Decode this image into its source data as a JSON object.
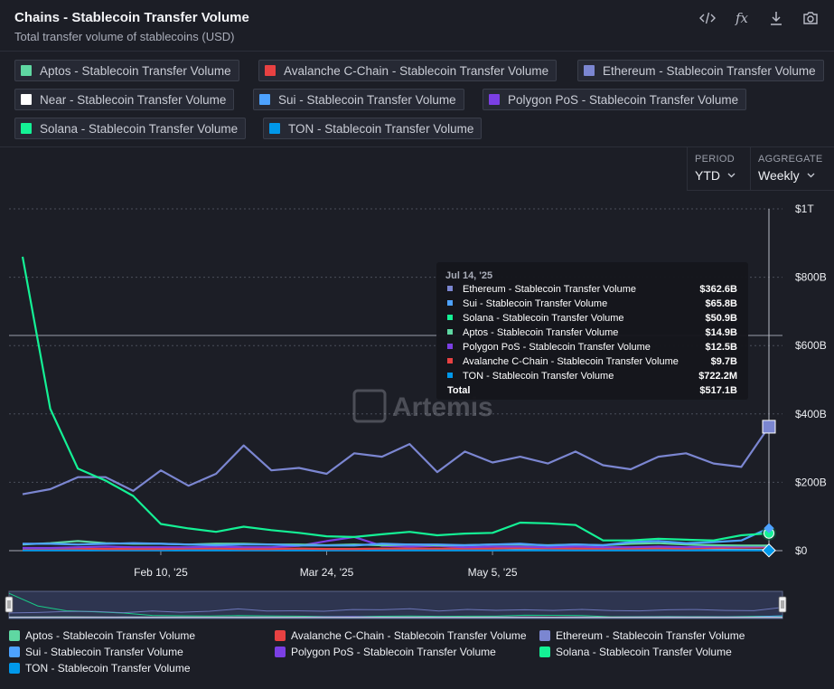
{
  "header": {
    "title": "Chains - Stablecoin Transfer Volume",
    "subtitle": "Total transfer volume of stablecoins (USD)"
  },
  "toolbar": {
    "icons": [
      "code-icon",
      "formula-icon",
      "download-icon",
      "camera-icon"
    ],
    "formula_label": "fx"
  },
  "chips": [
    {
      "label": "Aptos - Stablecoin Transfer Volume",
      "color": "#5fd7a2"
    },
    {
      "label": "Avalanche C-Chain - Stablecoin Transfer Volume",
      "color": "#e84142"
    },
    {
      "label": "Ethereum - Stablecoin Transfer Volume",
      "color": "#7b86d1"
    },
    {
      "label": "Near - Stablecoin Transfer Volume",
      "color": "#ffffff"
    },
    {
      "label": "Sui - Stablecoin Transfer Volume",
      "color": "#4da2ff"
    },
    {
      "label": "Polygon PoS - Stablecoin Transfer Volume",
      "color": "#7b3fe4"
    },
    {
      "label": "Solana - Stablecoin Transfer Volume",
      "color": "#14f195"
    },
    {
      "label": "TON - Stablecoin Transfer Volume",
      "color": "#0098ea"
    }
  ],
  "controls": {
    "period_label": "PERIOD",
    "period_value": "YTD",
    "aggregate_label": "AGGREGATE",
    "aggregate_value": "Weekly"
  },
  "watermark": "Artemis",
  "tooltip": {
    "date": "Jul 14, '25",
    "rows": [
      {
        "name": "Ethereum - Stablecoin Transfer Volume",
        "value": "$362.6B",
        "color": "#7b86d1"
      },
      {
        "name": "Sui - Stablecoin Transfer Volume",
        "value": "$65.8B",
        "color": "#4da2ff"
      },
      {
        "name": "Solana - Stablecoin Transfer Volume",
        "value": "$50.9B",
        "color": "#14f195"
      },
      {
        "name": "Aptos - Stablecoin Transfer Volume",
        "value": "$14.9B",
        "color": "#5fd7a2"
      },
      {
        "name": "Polygon PoS - Stablecoin Transfer Volume",
        "value": "$12.5B",
        "color": "#7b3fe4"
      },
      {
        "name": "Avalanche C-Chain - Stablecoin Transfer Volume",
        "value": "$9.7B",
        "color": "#e84142"
      },
      {
        "name": "TON - Stablecoin Transfer Volume",
        "value": "$722.2M",
        "color": "#0098ea"
      }
    ],
    "total_label": "Total",
    "total_value": "$517.1B"
  },
  "legend": [
    {
      "label": "Aptos - Stablecoin Transfer Volume",
      "color": "#5fd7a2"
    },
    {
      "label": "Avalanche C-Chain - Stablecoin Transfer Volume",
      "color": "#e84142"
    },
    {
      "label": "Ethereum - Stablecoin Transfer Volume",
      "color": "#7b86d1"
    },
    {
      "label": "Sui - Stablecoin Transfer Volume",
      "color": "#4da2ff"
    },
    {
      "label": "Polygon PoS - Stablecoin Transfer Volume",
      "color": "#7b3fe4"
    },
    {
      "label": "Solana - Stablecoin Transfer Volume",
      "color": "#14f195"
    },
    {
      "label": "TON - Stablecoin Transfer Volume",
      "color": "#0098ea"
    }
  ],
  "chart_data": {
    "type": "line",
    "x": [
      "Jan 6, '25",
      "Jan 13, '25",
      "Jan 20, '25",
      "Jan 27, '25",
      "Feb 3, '25",
      "Feb 10, '25",
      "Feb 17, '25",
      "Feb 24, '25",
      "Mar 3, '25",
      "Mar 10, '25",
      "Mar 17, '25",
      "Mar 24, '25",
      "Mar 31, '25",
      "Apr 7, '25",
      "Apr 14, '25",
      "Apr 21, '25",
      "Apr 28, '25",
      "May 5, '25",
      "May 12, '25",
      "May 19, '25",
      "May 26, '25",
      "Jun 2, '25",
      "Jun 9, '25",
      "Jun 16, '25",
      "Jun 23, '25",
      "Jun 30, '25",
      "Jul 7, '25",
      "Jul 14, '25"
    ],
    "xticks": [
      "Feb 10, '25",
      "Mar 24, '25",
      "May 5, '25"
    ],
    "yticks": [
      "$0",
      "$200B",
      "$400B",
      "$600B",
      "$800B",
      "$1T"
    ],
    "ylim": [
      0,
      1000
    ],
    "y_unit": "B USD",
    "series": [
      {
        "name": "Solana - Stablecoin Transfer Volume",
        "color": "#14f195",
        "values": [
          860,
          415,
          240,
          205,
          160,
          78,
          65,
          55,
          70,
          60,
          52,
          42,
          40,
          48,
          55,
          45,
          50,
          52,
          82,
          80,
          75,
          30,
          30,
          35,
          32,
          30,
          45,
          50.9
        ]
      },
      {
        "name": "Ethereum - Stablecoin Transfer Volume",
        "color": "#7b86d1",
        "values": [
          165,
          180,
          215,
          215,
          175,
          235,
          190,
          225,
          308,
          235,
          242,
          225,
          285,
          275,
          312,
          230,
          290,
          258,
          275,
          255,
          290,
          250,
          238,
          275,
          285,
          255,
          245,
          362.6
        ]
      },
      {
        "name": "Sui - Stablecoin Transfer Volume",
        "color": "#4da2ff",
        "values": [
          20,
          20,
          18,
          20,
          22,
          20,
          18,
          16,
          18,
          18,
          15,
          15,
          15,
          20,
          18,
          18,
          16,
          18,
          20,
          15,
          18,
          16,
          25,
          28,
          22,
          25,
          30,
          65.8
        ]
      },
      {
        "name": "Aptos - Stablecoin Transfer Volume",
        "color": "#5fd7a2",
        "values": [
          18,
          22,
          28,
          22,
          20,
          20,
          18,
          20,
          20,
          18,
          18,
          16,
          18,
          16,
          18,
          16,
          16,
          18,
          18,
          16,
          18,
          16,
          20,
          22,
          18,
          16,
          15,
          14.9
        ]
      },
      {
        "name": "Polygon PoS - Stablecoin Transfer Volume",
        "color": "#7b3fe4",
        "values": [
          8,
          8,
          10,
          12,
          10,
          10,
          10,
          12,
          10,
          10,
          14,
          28,
          40,
          14,
          12,
          14,
          10,
          12,
          12,
          10,
          12,
          10,
          10,
          12,
          10,
          12,
          12,
          12.5
        ]
      },
      {
        "name": "Avalanche C-Chain - Stablecoin Transfer Volume",
        "color": "#e84142",
        "values": [
          6,
          6,
          6,
          5,
          5,
          5,
          6,
          6,
          5,
          5,
          6,
          5,
          5,
          6,
          6,
          6,
          6,
          6,
          8,
          7,
          6,
          6,
          6,
          7,
          6,
          8,
          9,
          9.7
        ]
      },
      {
        "name": "TON - Stablecoin Transfer Volume",
        "color": "#0098ea",
        "values": [
          1,
          1,
          1,
          1,
          1,
          1,
          1,
          1,
          1,
          1,
          1,
          1,
          1,
          1,
          1,
          1,
          1,
          1,
          1,
          1,
          1,
          1,
          1,
          1,
          1,
          1,
          1,
          0.72
        ]
      },
      {
        "name": "Near - Stablecoin Transfer Volume",
        "color": "#ffffff",
        "values": [
          2,
          2,
          2,
          2,
          2,
          2,
          2,
          2,
          2,
          2,
          2,
          2,
          2,
          2,
          2,
          2,
          2,
          2,
          2,
          2,
          2,
          2,
          2,
          2,
          2,
          2,
          2,
          2
        ]
      }
    ],
    "grid": true,
    "y_axis_side": "right",
    "hovered_x": "Jul 14, '25"
  }
}
